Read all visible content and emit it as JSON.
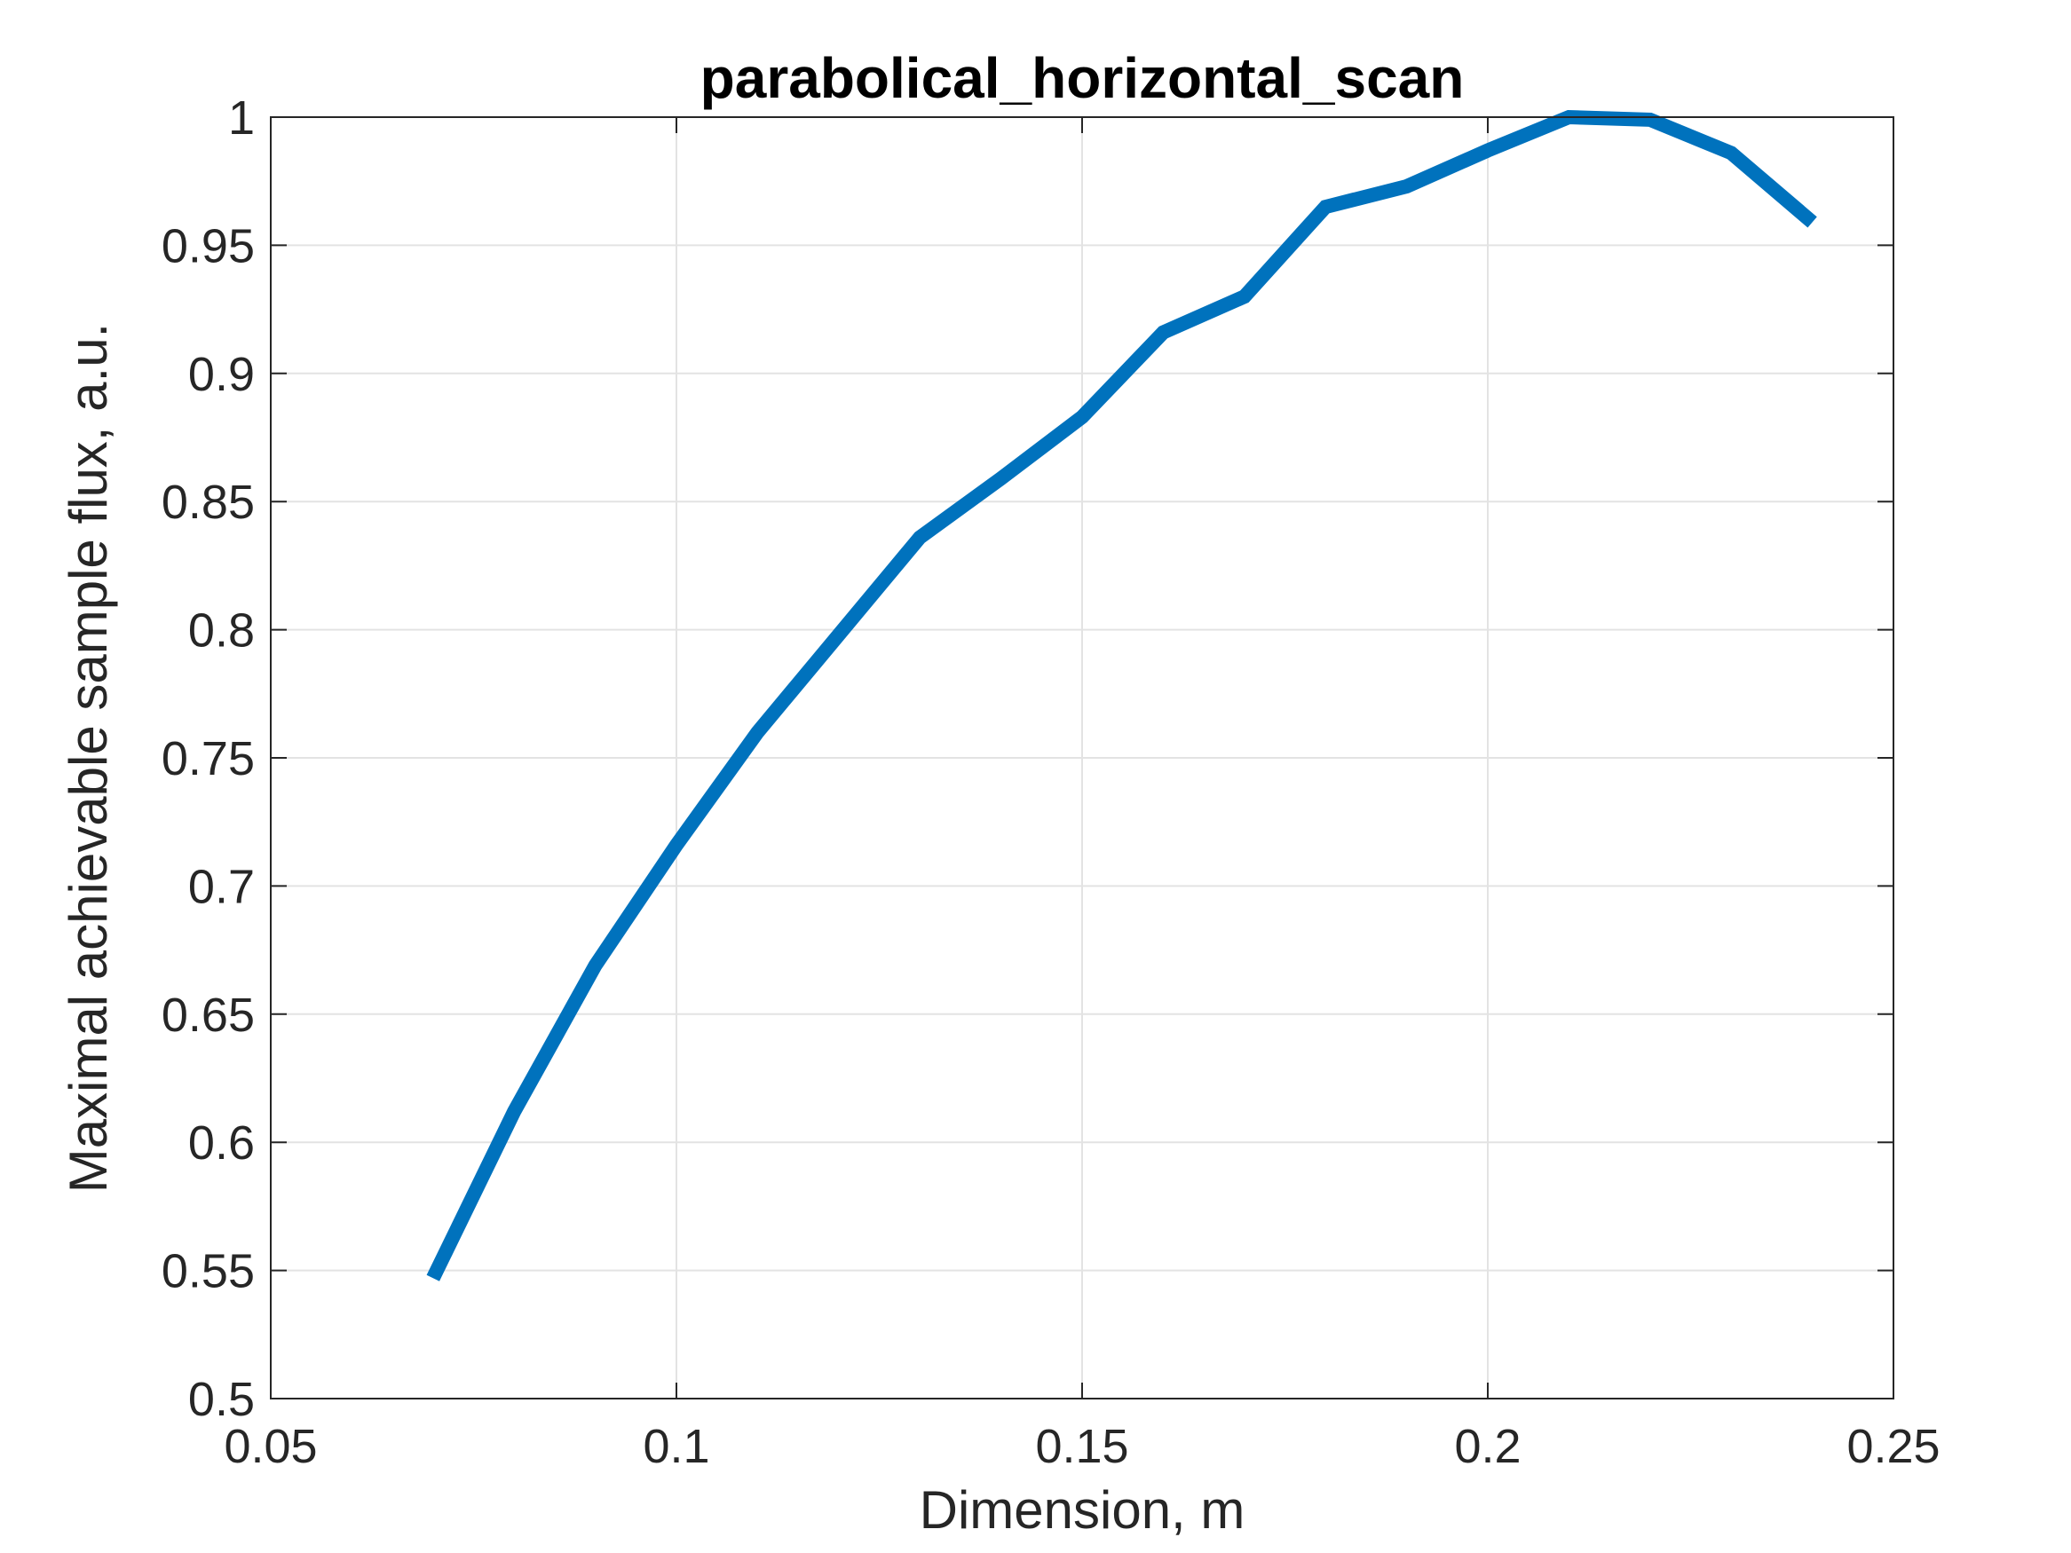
{
  "chart_data": {
    "type": "line",
    "title": "parabolical_horizontal_scan",
    "xlabel": "Dimension, m",
    "ylabel": "Maximal achievable sample flux, a.u.",
    "xlim": [
      0.05,
      0.25
    ],
    "ylim": [
      0.5,
      1
    ],
    "x_ticks": [
      "0.05",
      "0.1",
      "0.15",
      "0.2",
      "0.25"
    ],
    "y_ticks": [
      "0.5",
      "0.55",
      "0.6",
      "0.65",
      "0.7",
      "0.75",
      "0.8",
      "0.85",
      "0.9",
      "0.95",
      "1"
    ],
    "grid": true,
    "series": [
      {
        "color": "#0072BD",
        "x": [
          0.07,
          0.08,
          0.09,
          0.1,
          0.11,
          0.12,
          0.13,
          0.14,
          0.15,
          0.16,
          0.17,
          0.18,
          0.19,
          0.2,
          0.21,
          0.22,
          0.23,
          0.24
        ],
        "y": [
          0.547,
          0.612,
          0.669,
          0.716,
          0.76,
          0.798,
          0.836,
          0.859,
          0.883,
          0.916,
          0.93,
          0.965,
          0.973,
          0.987,
          1.0,
          0.999,
          0.986,
          0.959
        ]
      }
    ]
  }
}
